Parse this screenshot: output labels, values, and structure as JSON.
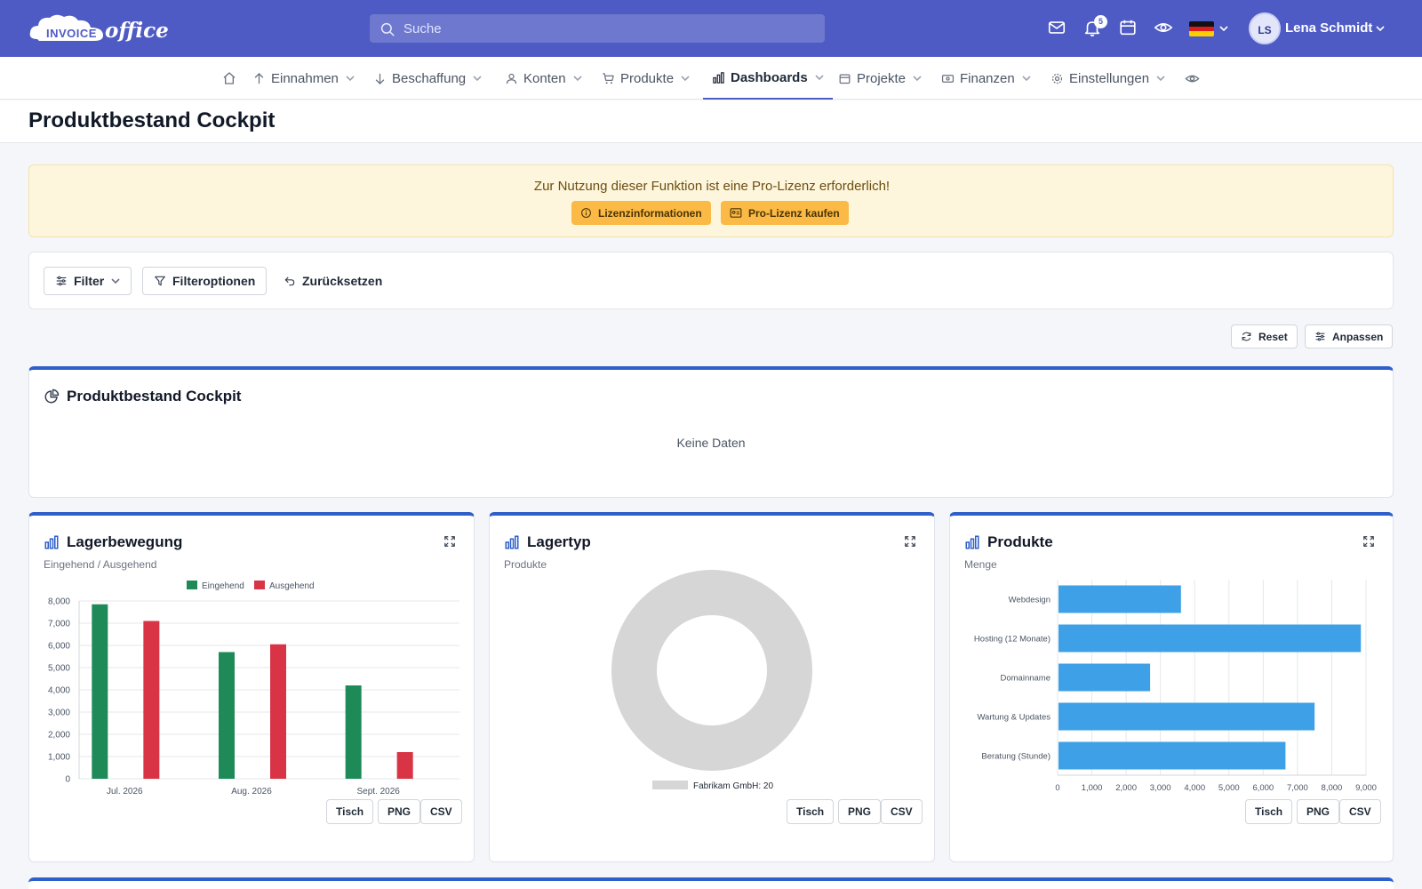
{
  "app": {
    "logo_text_1": "INVOICE",
    "logo_text_2": "office"
  },
  "search": {
    "placeholder": "Suche"
  },
  "header_icons": {
    "mail": "mail-icon",
    "bell": "bell-icon",
    "calendar": "calendar-icon",
    "eye": "eye-icon"
  },
  "notifications": {
    "count": "5"
  },
  "user": {
    "initials": "LS",
    "name": "Lena Schmidt"
  },
  "nav": {
    "items": [
      {
        "label": "Einnahmen",
        "icon": "arrow-up-icon"
      },
      {
        "label": "Beschaffung",
        "icon": "arrow-down-icon"
      },
      {
        "label": "Konten",
        "icon": "user-icon"
      },
      {
        "label": "Produkte",
        "icon": "cart-icon"
      },
      {
        "label": "Dashboards",
        "icon": "bar-chart-icon",
        "active": true
      },
      {
        "label": "Projekte",
        "icon": "calendar-icon"
      },
      {
        "label": "Finanzen",
        "icon": "cash-icon"
      },
      {
        "label": "Einstellungen",
        "icon": "gear-icon"
      }
    ]
  },
  "page": {
    "title": "Produktbestand Cockpit"
  },
  "license": {
    "message": "Zur Nutzung dieser Funktion ist eine Pro-Lizenz erforderlich!",
    "info_label": "Lizenzinformationen",
    "buy_label": "Pro-Lizenz kaufen"
  },
  "filters": {
    "filter_label": "Filter",
    "options_label": "Filteroptionen",
    "reset_label": "Zurücksetzen"
  },
  "toolbar": {
    "reset_label": "Reset",
    "customize_label": "Anpassen"
  },
  "cockpit_card": {
    "title": "Produktbestand Cockpit",
    "empty": "Keine Daten"
  },
  "export": {
    "table": "Tisch",
    "png": "PNG",
    "csv": "CSV"
  },
  "colors": {
    "incoming": "#1e8a57",
    "outgoing": "#d93445",
    "bar": "#3ea0e6",
    "donut": "#d6d6d6",
    "accent": "#4f5bc4"
  },
  "cards": {
    "movement": {
      "title": "Lagerbewegung",
      "subtitle": "Eingehend / Ausgehend"
    },
    "type": {
      "title": "Lagertyp",
      "subtitle": "Produkte"
    },
    "products": {
      "title": "Produkte",
      "subtitle": "Menge"
    }
  },
  "chart_data": [
    {
      "type": "bar",
      "categories": [
        "Jul. 2026",
        "Aug. 2026",
        "Sept. 2026"
      ],
      "series": [
        {
          "name": "Eingehend",
          "values": [
            7850,
            5700,
            4200
          ]
        },
        {
          "name": "Ausgehend",
          "values": [
            7100,
            6050,
            1200
          ]
        }
      ],
      "yticks": [
        "0",
        "1,000",
        "2,000",
        "3,000",
        "4,000",
        "5,000",
        "6,000",
        "7,000",
        "8,000"
      ],
      "ylim": [
        0,
        8000
      ],
      "legend": "top"
    },
    {
      "type": "pie",
      "labels": [
        "Fabrikam GmbH"
      ],
      "legend_labels": [
        "Fabrikam GmbH: 20"
      ],
      "values": [
        20
      ],
      "legend": "bottom"
    },
    {
      "type": "bar",
      "orientation": "horizontal",
      "categories": [
        "Webdesign",
        "Hosting (12 Monate)",
        "Domainname",
        "Wartung & Updates",
        "Beratung (Stunde)"
      ],
      "values": [
        3600,
        8850,
        2700,
        7500,
        6650
      ],
      "xticks": [
        "0",
        "1,000",
        "2,000",
        "3,000",
        "4,000",
        "5,000",
        "6,000",
        "7,000",
        "8,000",
        "9,000"
      ],
      "xlim": [
        0,
        9000
      ]
    }
  ]
}
